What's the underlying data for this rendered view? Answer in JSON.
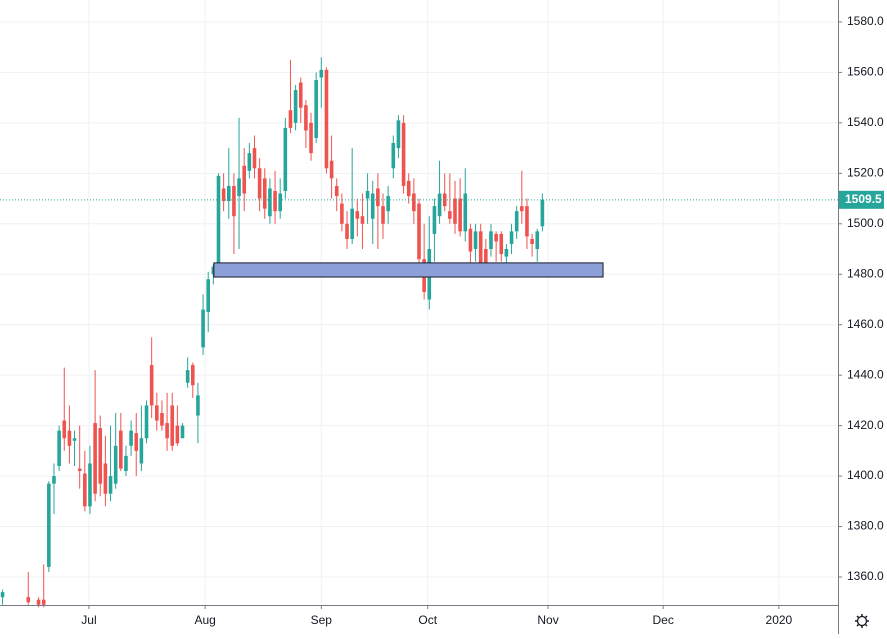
{
  "chart_data": {
    "type": "candlestick",
    "up_color": "#26a69a",
    "down_color": "#ef5350",
    "x": [
      0,
      5,
      7,
      8,
      9,
      10,
      11,
      12,
      13,
      14,
      15,
      16,
      17,
      18,
      19,
      20,
      21,
      22,
      23,
      24,
      25,
      26,
      27,
      28,
      29,
      30,
      31,
      32,
      33,
      34,
      35,
      36,
      37,
      38,
      39,
      40,
      41,
      42,
      43,
      44,
      45,
      46,
      47,
      48,
      49,
      50,
      51,
      52,
      53,
      54,
      55,
      56,
      57,
      58,
      59,
      60,
      61,
      62,
      63,
      64,
      65,
      66,
      67,
      68,
      69,
      70,
      71,
      72,
      73,
      74,
      75,
      76,
      77,
      78,
      79,
      80,
      81,
      82,
      83,
      84,
      85,
      86,
      87,
      88,
      89,
      90,
      91,
      92,
      93,
      94,
      95,
      96,
      97,
      98,
      99,
      100,
      101,
      102,
      103,
      104,
      105
    ],
    "open": [
      1352,
      1352,
      1351,
      1351,
      1364,
      1397,
      1404,
      1422,
      1418,
      1414,
      1403,
      1401,
      1388,
      1421,
      1419,
      1405,
      1393,
      1397,
      1418,
      1402,
      1412,
      1417,
      1405,
      1415,
      1444,
      1428,
      1425,
      1421,
      1428,
      1420,
      1415,
      1437,
      1444,
      1424,
      1451,
      1465,
      1480,
      1483,
      1514,
      1509,
      1515,
      1511,
      1523,
      1521,
      1530,
      1522,
      1518,
      1503,
      1513,
      1505,
      1513,
      1545,
      1540,
      1556,
      1547,
      1540,
      1534,
      1558,
      1561,
      1525,
      1515,
      1508,
      1500,
      1494,
      1505,
      1503,
      1510,
      1502,
      1514,
      1507,
      1505,
      1522,
      1530,
      1540,
      1517,
      1512,
      1508,
      1486,
      1470,
      1496,
      1503,
      1512,
      1505,
      1510,
      1510,
      1497,
      1498,
      1490,
      1497,
      1490,
      1490,
      1496,
      1496,
      1487,
      1492,
      1497,
      1507,
      1507,
      1494,
      1490,
      1499
    ],
    "high": [
      1355,
      1362,
      1352,
      1365,
      1398,
      1405,
      1420,
      1443,
      1428,
      1418,
      1420,
      1410,
      1412,
      1442,
      1424,
      1416,
      1420,
      1425,
      1425,
      1412,
      1422,
      1425,
      1428,
      1430,
      1455,
      1433,
      1430,
      1433,
      1433,
      1428,
      1421,
      1447,
      1445,
      1437,
      1472,
      1481,
      1484,
      1520,
      1520,
      1530,
      1520,
      1542,
      1530,
      1532,
      1535,
      1526,
      1522,
      1518,
      1521,
      1518,
      1542,
      1565,
      1555,
      1558,
      1549,
      1544,
      1560,
      1566,
      1562,
      1535,
      1518,
      1512,
      1505,
      1530,
      1510,
      1512,
      1520,
      1517,
      1520,
      1512,
      1515,
      1535,
      1543,
      1543,
      1520,
      1518,
      1510,
      1500,
      1503,
      1510,
      1525,
      1520,
      1520,
      1517,
      1518,
      1522,
      1500,
      1500,
      1500,
      1494,
      1500,
      1497,
      1497,
      1492,
      1500,
      1507,
      1521,
      1510,
      1496,
      1498,
      1512
    ],
    "low": [
      1349,
      1349,
      1348,
      1348,
      1362,
      1385,
      1402,
      1410,
      1405,
      1404,
      1395,
      1386,
      1385,
      1390,
      1392,
      1388,
      1390,
      1395,
      1402,
      1400,
      1408,
      1400,
      1402,
      1413,
      1423,
      1418,
      1418,
      1410,
      1410,
      1412,
      1415,
      1435,
      1431,
      1413,
      1448,
      1457,
      1476,
      1481,
      1505,
      1502,
      1488,
      1490,
      1505,
      1518,
      1518,
      1505,
      1502,
      1500,
      1500,
      1502,
      1510,
      1536,
      1537,
      1540,
      1530,
      1525,
      1532,
      1546,
      1520,
      1510,
      1505,
      1497,
      1490,
      1492,
      1495,
      1490,
      1500,
      1492,
      1490,
      1494,
      1500,
      1518,
      1526,
      1512,
      1508,
      1500,
      1483,
      1470,
      1466,
      1485,
      1500,
      1505,
      1500,
      1496,
      1495,
      1493,
      1479,
      1485,
      1481,
      1480,
      1487,
      1485,
      1485,
      1484,
      1488,
      1494,
      1500,
      1490,
      1487,
      1485,
      1497
    ],
    "close": [
      1354,
      1350,
      1349,
      1349,
      1397,
      1400,
      1418,
      1415,
      1412,
      1415,
      1402,
      1388,
      1405,
      1393,
      1397,
      1393,
      1400,
      1412,
      1403,
      1408,
      1418,
      1410,
      1415,
      1428,
      1428,
      1422,
      1420,
      1415,
      1412,
      1413,
      1420,
      1442,
      1436,
      1432,
      1466,
      1478,
      1483,
      1519,
      1509,
      1515,
      1503,
      1518,
      1512,
      1528,
      1522,
      1510,
      1506,
      1514,
      1505,
      1512,
      1538,
      1538,
      1553,
      1546,
      1537,
      1528,
      1557,
      1561,
      1522,
      1518,
      1511,
      1500,
      1494,
      1506,
      1502,
      1500,
      1513,
      1512,
      1507,
      1500,
      1511,
      1532,
      1541,
      1515,
      1511,
      1505,
      1486,
      1473,
      1490,
      1507,
      1512,
      1507,
      1502,
      1500,
      1497,
      1512,
      1489,
      1497,
      1484,
      1483,
      1497,
      1493,
      1488,
      1490,
      1497,
      1505,
      1505,
      1495,
      1492,
      1497,
      1509.5
    ],
    "xlim": [
      -0.5,
      162.5
    ],
    "xticks": [
      {
        "value": 16.8,
        "label": "Jul"
      },
      {
        "value": 39.4,
        "label": "Aug"
      },
      {
        "value": 62,
        "label": "Sep"
      },
      {
        "value": 82.7,
        "label": "Oct"
      },
      {
        "value": 106.1,
        "label": "Nov"
      },
      {
        "value": 128.5,
        "label": "Dec"
      },
      {
        "value": 151,
        "label": "2020"
      }
    ],
    "ylim": [
      1348.9,
      1588.7
    ],
    "yticks": [
      {
        "value": 1360,
        "label": "1360.0"
      },
      {
        "value": 1380,
        "label": "1380.0"
      },
      {
        "value": 1400,
        "label": "1400.0"
      },
      {
        "value": 1420,
        "label": "1420.0"
      },
      {
        "value": 1440,
        "label": "1440.0"
      },
      {
        "value": 1460,
        "label": "1460.0"
      },
      {
        "value": 1480,
        "label": "1480.0"
      },
      {
        "value": 1500,
        "label": "1500.0"
      },
      {
        "value": 1520,
        "label": "1520.0"
      },
      {
        "value": 1540,
        "label": "1540.0"
      },
      {
        "value": 1560,
        "label": "1560.0"
      },
      {
        "value": 1580,
        "label": "1580.0"
      }
    ],
    "grid": true,
    "last_price": 1509.5,
    "zone": {
      "x": [
        41.1,
        116.8
      ],
      "y": [
        1478.9,
        1484.5
      ],
      "color": "#8c9fd6"
    }
  }
}
